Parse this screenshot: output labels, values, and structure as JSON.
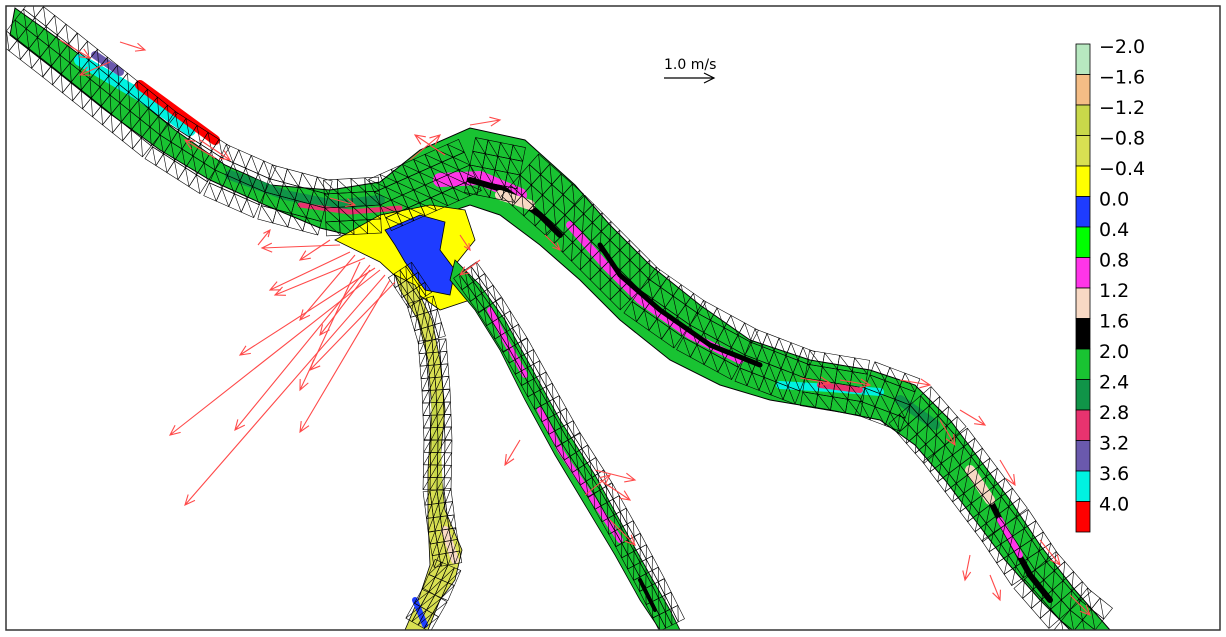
{
  "scale": {
    "label": "1.0 m/s"
  },
  "legend": {
    "items": [
      {
        "label": "−2.0",
        "color": "#b7e8c0"
      },
      {
        "label": "−1.6",
        "color": "#f5bd85"
      },
      {
        "label": "−1.2",
        "color": "#c9d84a"
      },
      {
        "label": "−0.8",
        "color": "#d9e052"
      },
      {
        "label": "−0.4",
        "color": "#ffff00"
      },
      {
        "label": "0.0",
        "color": "#1e3cff"
      },
      {
        "label": "0.4",
        "color": "#00ff00"
      },
      {
        "label": "0.8",
        "color": "#ff35e8"
      },
      {
        "label": "1.2",
        "color": "#f8d9c4"
      },
      {
        "label": "1.6",
        "color": "#000000"
      },
      {
        "label": "2.0",
        "color": "#19c332"
      },
      {
        "label": "2.4",
        "color": "#109448"
      },
      {
        "label": "2.8",
        "color": "#e8336f"
      },
      {
        "label": "3.2",
        "color": "#6a59ad"
      },
      {
        "label": "3.6",
        "color": "#00f2e1"
      },
      {
        "label": "4.0",
        "color": "#ff0000"
      }
    ]
  },
  "colors": {
    "vector": "#ff4a4a",
    "mesh": "#000000",
    "frame": "#333333"
  }
}
